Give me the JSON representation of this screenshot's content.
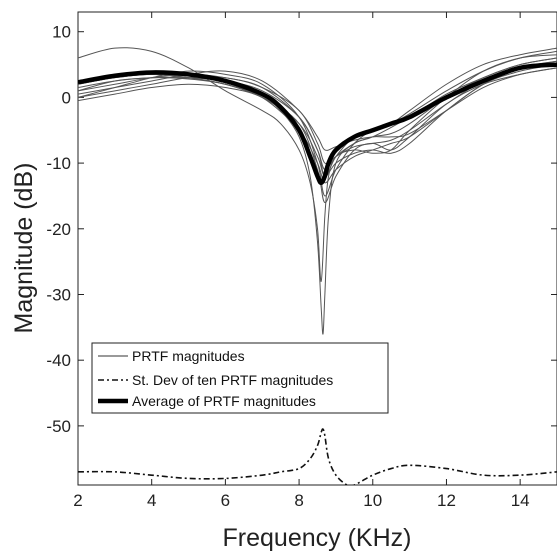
{
  "chart_data": {
    "type": "line",
    "xlabel": "Frequency (KHz)",
    "ylabel": "Magnitude (dB)",
    "xlim": [
      2,
      15
    ],
    "ylim": [
      -59,
      13
    ],
    "xticks": [
      2,
      4,
      6,
      8,
      10,
      12,
      14
    ],
    "yticks": [
      10,
      0,
      -10,
      -20,
      -30,
      -40,
      -50
    ],
    "grid": false,
    "legend_position": "bottom-left",
    "legend": [
      {
        "label": "PRTF magnitudes",
        "style": "thin-solid"
      },
      {
        "label": "St. Dev of ten PRTF magnitudes",
        "style": "dash-dot"
      },
      {
        "label": "Average of PRTF magnitudes",
        "style": "thick-solid"
      }
    ],
    "colors": {
      "lines": "#000000",
      "individual": "#555555"
    },
    "series": [
      {
        "kind": "individual",
        "x": [
          2,
          3,
          4,
          5,
          6,
          7,
          7.5,
          8,
          8.3,
          8.5,
          8.6,
          8.7,
          8.8,
          9,
          9.5,
          10,
          10.5,
          11,
          12,
          13,
          14,
          15
        ],
        "y": [
          6,
          7.5,
          7,
          4.5,
          1,
          -2,
          -4,
          -8,
          -13,
          -20,
          -28,
          -18,
          -12,
          -9,
          -8,
          -8.5,
          -8,
          -5,
          0,
          4,
          6,
          6.5
        ]
      },
      {
        "kind": "individual",
        "x": [
          2,
          3,
          4,
          5,
          6,
          7,
          7.5,
          8,
          8.3,
          8.5,
          8.6,
          8.65,
          8.7,
          8.8,
          9,
          9.5,
          10,
          11,
          12,
          13,
          14,
          15
        ],
        "y": [
          2,
          3,
          3.5,
          3,
          2,
          0,
          -2,
          -6,
          -12,
          -22,
          -32,
          -36,
          -30,
          -18,
          -10,
          -7,
          -6,
          -3,
          0.5,
          3,
          5,
          6
        ]
      },
      {
        "kind": "individual",
        "x": [
          2,
          3,
          4,
          5,
          6,
          7,
          8,
          8.5,
          8.7,
          9,
          9.5,
          10,
          10.5,
          11,
          12,
          13,
          14,
          15
        ],
        "y": [
          1,
          2.5,
          3,
          3,
          2.5,
          1,
          -3,
          -8,
          -12,
          -9,
          -6,
          -5,
          -4,
          -2,
          2,
          5,
          6.5,
          7.5
        ]
      },
      {
        "kind": "individual",
        "x": [
          2,
          3,
          4,
          5,
          6,
          7,
          8,
          8.5,
          8.7,
          9,
          9.5,
          10,
          10.5,
          11,
          12,
          13,
          14,
          15
        ],
        "y": [
          0,
          1.5,
          3,
          4,
          3.5,
          2,
          -3,
          -10,
          -15,
          -11,
          -7,
          -5,
          -4,
          -2.5,
          1,
          4,
          6,
          7
        ]
      },
      {
        "kind": "individual",
        "x": [
          2,
          3,
          4,
          5,
          6,
          7,
          8,
          8.5,
          8.7,
          9,
          9.5,
          10,
          10.5,
          11,
          12,
          13,
          14,
          15
        ],
        "y": [
          -0.5,
          0.5,
          1.5,
          2,
          1.5,
          0,
          -4,
          -11,
          -16,
          -12,
          -8,
          -7,
          -8,
          -6,
          -1,
          2,
          3.5,
          4.5
        ]
      },
      {
        "kind": "individual",
        "x": [
          2,
          3,
          4,
          5,
          6,
          7,
          8,
          8.5,
          8.7,
          9,
          9.5,
          10,
          10.5,
          11,
          12,
          13,
          14,
          15
        ],
        "y": [
          1.5,
          2.5,
          3,
          2.8,
          2,
          0,
          -5,
          -10,
          -13,
          -11,
          -9,
          -8,
          -7,
          -6,
          -2,
          2,
          4,
          5
        ]
      },
      {
        "kind": "individual",
        "x": [
          2,
          3,
          4,
          5,
          6,
          7,
          8,
          8.5,
          8.7,
          9,
          9.5,
          10,
          10.5,
          11,
          12,
          13,
          14,
          15
        ],
        "y": [
          0.5,
          1.5,
          2.5,
          3.5,
          4,
          2.5,
          -2,
          -6,
          -8,
          -7.5,
          -6.5,
          -6,
          -6,
          -5.5,
          -2,
          1.5,
          3.5,
          4.5
        ]
      },
      {
        "kind": "individual",
        "x": [
          2,
          3,
          4,
          5,
          6,
          7,
          8,
          8.5,
          8.7,
          9,
          9.5,
          10,
          10.5,
          11,
          12,
          13,
          14,
          15
        ],
        "y": [
          2,
          3,
          3.5,
          3,
          2,
          0,
          -4,
          -9,
          -12,
          -10,
          -8.5,
          -8,
          -8.5,
          -7,
          -2,
          2,
          4.5,
          5.5
        ]
      },
      {
        "kind": "individual",
        "x": [
          2,
          3,
          4,
          5,
          6,
          7,
          8,
          8.5,
          8.7,
          9,
          9.5,
          10,
          10.5,
          11,
          12,
          13,
          14,
          15
        ],
        "y": [
          1,
          2,
          3,
          3.5,
          3,
          1.5,
          -3,
          -8,
          -11,
          -9,
          -7,
          -6,
          -5.5,
          -4,
          0,
          3,
          5,
          6
        ]
      },
      {
        "kind": "individual",
        "x": [
          2,
          3,
          4,
          5,
          6,
          7,
          8,
          8.5,
          8.7,
          9,
          9.5,
          10,
          10.5,
          11,
          12,
          13,
          14,
          15
        ],
        "y": [
          0,
          1,
          2,
          3,
          3,
          1.5,
          -2,
          -7,
          -10,
          -9,
          -7.5,
          -7,
          -6.5,
          -5,
          -1,
          2.5,
          4.5,
          5.5
        ]
      },
      {
        "kind": "average",
        "name": "Average of PRTF magnitudes",
        "x": [
          2,
          3,
          4,
          5,
          6,
          7,
          7.5,
          8,
          8.3,
          8.5,
          8.6,
          8.7,
          8.8,
          9,
          9.5,
          10,
          10.5,
          11,
          12,
          13,
          14,
          15
        ],
        "y": [
          2.3,
          3.3,
          3.8,
          3.5,
          2.5,
          0.5,
          -1.5,
          -5,
          -9,
          -12,
          -13,
          -12,
          -10,
          -8,
          -6,
          -5,
          -4,
          -3,
          0,
          2.5,
          4.5,
          5
        ]
      },
      {
        "kind": "std",
        "name": "St. Dev of ten PRTF magnitudes",
        "x": [
          2,
          3,
          4,
          5,
          6,
          7,
          7.5,
          8,
          8.3,
          8.5,
          8.6,
          8.65,
          8.7,
          8.8,
          9,
          9.3,
          9.5,
          10,
          10.5,
          11,
          12,
          13,
          14,
          15
        ],
        "y": [
          -57,
          -57,
          -57.5,
          -58,
          -58,
          -57.5,
          -57,
          -56.5,
          -55,
          -53,
          -51,
          -50.5,
          -51.5,
          -55,
          -57.5,
          -59,
          -59,
          -57.5,
          -56.5,
          -56,
          -56.5,
          -57.5,
          -57.5,
          -57
        ]
      }
    ]
  }
}
